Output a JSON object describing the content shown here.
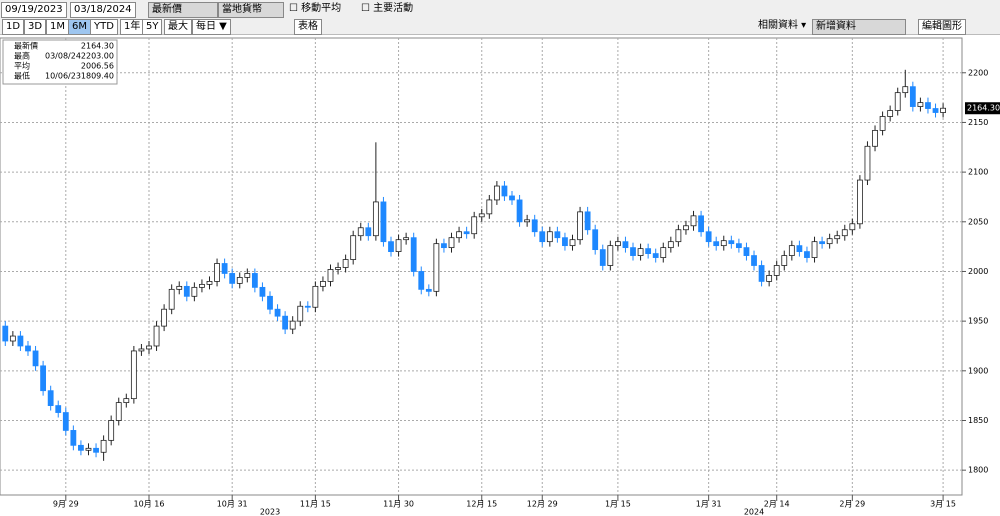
{
  "toolbar": {
    "start_date": "09/19/2023",
    "end_date": "03/18/2024",
    "field": "最新價",
    "currency": "當地貨幣",
    "moving_average": "移動平均",
    "key_events": "主要活動",
    "ranges": [
      "1D",
      "3D",
      "1M",
      "6M",
      "YTD",
      "1年",
      "5Y",
      "最大"
    ],
    "active_range_index": 3,
    "frequency": "每日 ▼",
    "table": "表格",
    "related": "相關資料 ▾",
    "add_data": "新增資料",
    "edit": "編輯圖形"
  },
  "chart_data": {
    "type": "candlestick",
    "legend": [
      {
        "name": "最新價",
        "value": "2164.30"
      },
      {
        "name": "最高",
        "date": "03/08/24",
        "value": "2203.00"
      },
      {
        "name": "平均",
        "value": "2006.56"
      },
      {
        "name": "最低",
        "date": "10/06/23",
        "value": "1809.40"
      }
    ],
    "up_color": "#ffffff",
    "down_color": "#1e88ff",
    "open": [
      1945,
      1930,
      1935,
      1925,
      1920,
      1905,
      1880,
      1865,
      1858,
      1840,
      1825,
      1820,
      1822,
      1818,
      1830,
      1850,
      1868,
      1872,
      1920,
      1922,
      1925,
      1945,
      1962,
      1982,
      1985,
      1975,
      1984,
      1987,
      1990,
      2008,
      1998,
      1988,
      1994,
      1998,
      1984,
      1975,
      1962,
      1955,
      1942,
      1950,
      1965,
      1964,
      1985,
      1990,
      2002,
      2004,
      2012,
      2036,
      2044,
      2036,
      2070,
      2030,
      2020,
      2032,
      2034,
      2000,
      1982,
      1980,
      2028,
      2024,
      2034,
      2040,
      2038,
      2055,
      2058,
      2072,
      2086,
      2076,
      2072,
      2050,
      2052,
      2040,
      2030,
      2040,
      2034,
      2026,
      2032,
      2060,
      2042,
      2022,
      2006,
      2026,
      2030,
      2024,
      2016,
      2023,
      2018,
      2014,
      2024,
      2030,
      2042,
      2046,
      2056,
      2040,
      2030,
      2026,
      2031,
      2028,
      2024,
      2016,
      2006,
      1990,
      1996,
      2006,
      2016,
      2026,
      2020,
      2014,
      2030,
      2028,
      2033,
      2036,
      2042,
      2048,
      2092,
      2126,
      2142,
      2156,
      2162,
      2180,
      2186,
      2166,
      2170,
      2164,
      2160
    ],
    "high": [
      1950,
      1940,
      1940,
      1930,
      1925,
      1910,
      1885,
      1870,
      1863,
      1845,
      1830,
      1827,
      1827,
      1835,
      1855,
      1873,
      1877,
      1925,
      1927,
      1930,
      1950,
      1967,
      1987,
      1990,
      1990,
      1989,
      1992,
      1995,
      2013,
      2013,
      2003,
      1999,
      2003,
      2003,
      1989,
      1980,
      1967,
      1960,
      1955,
      1970,
      1970,
      1990,
      1995,
      2007,
      2009,
      2017,
      2041,
      2049,
      2049,
      2130,
      2075,
      2035,
      2037,
      2039,
      2039,
      2005,
      1987,
      2033,
      2033,
      2039,
      2045,
      2045,
      2060,
      2063,
      2077,
      2091,
      2091,
      2081,
      2077,
      2057,
      2057,
      2045,
      2045,
      2045,
      2039,
      2037,
      2065,
      2065,
      2047,
      2027,
      2031,
      2035,
      2035,
      2029,
      2028,
      2028,
      2023,
      2029,
      2035,
      2047,
      2051,
      2061,
      2061,
      2045,
      2035,
      2036,
      2036,
      2033,
      2029,
      2021,
      2011,
      2001,
      2011,
      2021,
      2031,
      2031,
      2025,
      2035,
      2035,
      2038,
      2041,
      2047,
      2053,
      2097,
      2131,
      2147,
      2161,
      2167,
      2185,
      2203,
      2191,
      2175,
      2175,
      2169,
      2169.3
    ],
    "low": [
      1925,
      1925,
      1920,
      1915,
      1900,
      1875,
      1860,
      1853,
      1835,
      1820,
      1815,
      1815,
      1813,
      1809.4,
      1825,
      1845,
      1863,
      1867,
      1915,
      1917,
      1920,
      1940,
      1957,
      1977,
      1970,
      1970,
      1979,
      1982,
      1985,
      1993,
      1983,
      1983,
      1989,
      1979,
      1970,
      1957,
      1950,
      1937,
      1937,
      1945,
      1959,
      1959,
      1980,
      1985,
      1997,
      1999,
      2007,
      2031,
      2031,
      2031,
      2025,
      2015,
      2015,
      2027,
      1995,
      1977,
      1975,
      1975,
      2019,
      2019,
      2029,
      2033,
      2033,
      2050,
      2053,
      2067,
      2071,
      2067,
      2045,
      2045,
      2035,
      2025,
      2025,
      2029,
      2021,
      2021,
      2027,
      2037,
      2017,
      2001,
      2001,
      2021,
      2019,
      2011,
      2011,
      2013,
      2009,
      2009,
      2019,
      2025,
      2037,
      2041,
      2035,
      2025,
      2021,
      2021,
      2023,
      2019,
      2011,
      2001,
      1985,
      1985,
      1991,
      2001,
      2011,
      2015,
      2009,
      2009,
      2023,
      2023,
      2028,
      2031,
      2037,
      2043,
      2087,
      2121,
      2137,
      2151,
      2157,
      2175,
      2161,
      2161,
      2159,
      2155,
      2155
    ],
    "close": [
      1930,
      1935,
      1925,
      1920,
      1905,
      1880,
      1865,
      1858,
      1840,
      1825,
      1820,
      1822,
      1818,
      1830,
      1850,
      1868,
      1872,
      1920,
      1922,
      1925,
      1945,
      1962,
      1982,
      1985,
      1975,
      1984,
      1987,
      1990,
      2008,
      1998,
      1988,
      1994,
      1998,
      1984,
      1975,
      1962,
      1955,
      1942,
      1950,
      1965,
      1964,
      1985,
      1990,
      2002,
      2004,
      2012,
      2036,
      2044,
      2036,
      2070,
      2030,
      2020,
      2032,
      2034,
      2000,
      1982,
      1980,
      2028,
      2024,
      2034,
      2040,
      2038,
      2055,
      2058,
      2072,
      2086,
      2076,
      2072,
      2050,
      2052,
      2040,
      2030,
      2040,
      2034,
      2026,
      2032,
      2060,
      2042,
      2022,
      2006,
      2026,
      2030,
      2024,
      2016,
      2023,
      2018,
      2014,
      2024,
      2030,
      2042,
      2046,
      2056,
      2040,
      2030,
      2026,
      2031,
      2028,
      2024,
      2016,
      2006,
      1990,
      1996,
      2006,
      2016,
      2026,
      2020,
      2014,
      2030,
      2028,
      2033,
      2036,
      2042,
      2048,
      2092,
      2126,
      2142,
      2156,
      2162,
      2180,
      2186,
      2166,
      2170,
      2164,
      2160,
      2164.3
    ],
    "xlim": [
      -0.7,
      126.5
    ],
    "xticks": [
      {
        "value": 8,
        "label": "9月 29"
      },
      {
        "value": 19,
        "label": "10月 16"
      },
      {
        "value": 30,
        "label": "10月 31"
      },
      {
        "value": 41,
        "label": "11月 15"
      },
      {
        "value": 52,
        "label": "11月 30"
      },
      {
        "value": 63,
        "label": "12月 15"
      },
      {
        "value": 71,
        "label": "12月 29"
      },
      {
        "value": 81,
        "label": "1月 15"
      },
      {
        "value": 93,
        "label": "1月 31"
      },
      {
        "value": 102,
        "label": "2月 14"
      },
      {
        "value": 112,
        "label": "2月 29"
      },
      {
        "value": 124,
        "label": "3月 15"
      }
    ],
    "year_labels": [
      {
        "value": 35,
        "label": "2023"
      },
      {
        "value": 99,
        "label": "2024"
      }
    ],
    "ylim": [
      1775,
      2235
    ],
    "yticks": [
      1800,
      1850,
      1900,
      1950,
      2000,
      2050,
      2100,
      2150,
      2200
    ],
    "grid": true
  }
}
